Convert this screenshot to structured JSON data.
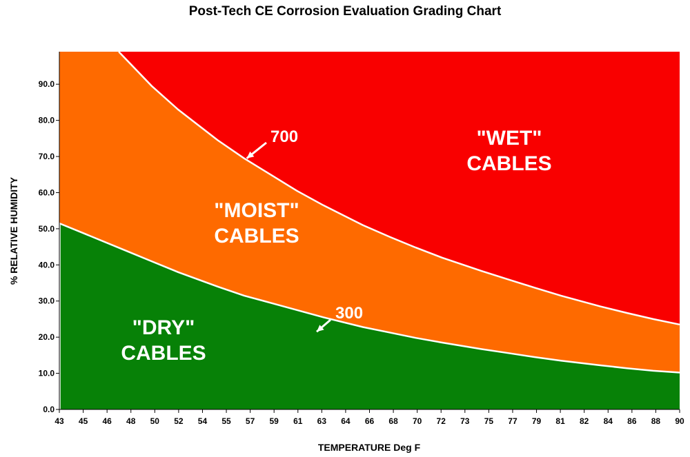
{
  "chart_data": {
    "type": "area",
    "title": "Post-Tech CE Corrosion Evaluation Grading Chart",
    "xlabel": "TEMPERATURE Deg F",
    "ylabel": "% RELATIVE HUMIDITY",
    "xlim": [
      43,
      90
    ],
    "ylim": [
      0,
      99
    ],
    "x_ticks": [
      "43",
      "45",
      "46",
      "48",
      "50",
      "52",
      "54",
      "55",
      "57",
      "59",
      "61",
      "63",
      "64",
      "66",
      "68",
      "70",
      "72",
      "73",
      "75",
      "77",
      "79",
      "81",
      "82",
      "84",
      "86",
      "88",
      "90"
    ],
    "y_ticks": [
      "0.0",
      "10.0",
      "20.0",
      "30.0",
      "40.0",
      "50.0",
      "60.0",
      "70.0",
      "80.0",
      "90.0"
    ],
    "grid": false,
    "series": [
      {
        "name": "300",
        "x": [
          43,
          45,
          48,
          50,
          52,
          55,
          57,
          59,
          61,
          63,
          66,
          68,
          70,
          72,
          75,
          77,
          79,
          81,
          84,
          86,
          88,
          90
        ],
        "y": [
          51.5,
          48.5,
          44.0,
          41.0,
          38.0,
          34.0,
          31.5,
          29.5,
          27.5,
          25.5,
          22.8,
          21.3,
          19.8,
          18.5,
          16.7,
          15.6,
          14.5,
          13.5,
          12.2,
          11.4,
          10.7,
          10.2
        ]
      },
      {
        "name": "700",
        "x": [
          47.5,
          50,
          52,
          55,
          57,
          59,
          61,
          63,
          66,
          68,
          70,
          72,
          75,
          77,
          79,
          81,
          84,
          86,
          88,
          90
        ],
        "y": [
          99,
          89.5,
          83.0,
          74.5,
          69.5,
          65.0,
          60.5,
          56.5,
          51.0,
          47.8,
          44.8,
          42.0,
          38.3,
          36.0,
          33.7,
          31.5,
          28.5,
          26.7,
          25.0,
          23.5
        ]
      }
    ],
    "zones": [
      {
        "label_lines": [
          "\"DRY\"",
          "CABLES"
        ],
        "color": "#078107"
      },
      {
        "label_lines": [
          "\"MOIST\"",
          "CABLES"
        ],
        "color": "#fe6a00"
      },
      {
        "label_lines": [
          "\"WET\"",
          "CABLES"
        ],
        "color": "#f90000"
      }
    ],
    "annotations": [
      {
        "text": "700",
        "target": [
          57.2,
          69.5
        ]
      },
      {
        "text": "300",
        "target": [
          62.5,
          21.5
        ]
      }
    ],
    "curve_color": "#ffffff"
  }
}
